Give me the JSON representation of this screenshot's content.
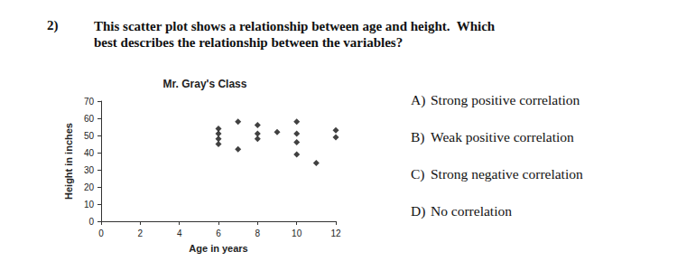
{
  "question": {
    "number": "2)",
    "text": [
      "This scatter plot shows a relationship between age and height.  Which",
      "best describes the relationship between the variables?"
    ]
  },
  "options": [
    {
      "letter": "A)",
      "text": "Strong positive correlation"
    },
    {
      "letter": "B)",
      "text": "Weak positive correlation"
    },
    {
      "letter": "C)",
      "text": "Strong negative correlation"
    },
    {
      "letter": "D)",
      "text": "No correlation"
    }
  ],
  "chart_data": {
    "type": "scatter",
    "title": "Mr. Gray's Class",
    "x_label": "Age in years",
    "y_label": "Height in inches",
    "x": [
      6,
      6,
      6,
      6,
      7,
      7,
      8,
      8,
      8,
      9,
      10,
      10,
      10,
      10,
      11,
      12,
      12
    ],
    "values": [
      54,
      51,
      48,
      45,
      58,
      42,
      56,
      51,
      48,
      52,
      58,
      51,
      46,
      39,
      34,
      53,
      49
    ],
    "color": "#111111",
    "marker": "diamond",
    "grid": false,
    "xlim": [
      0,
      12
    ],
    "xticks": [
      0,
      2,
      4,
      6,
      8,
      10,
      12
    ],
    "ylim": [
      0,
      70
    ],
    "yticks": [
      0,
      10,
      20,
      30,
      40,
      50,
      60,
      70
    ]
  }
}
